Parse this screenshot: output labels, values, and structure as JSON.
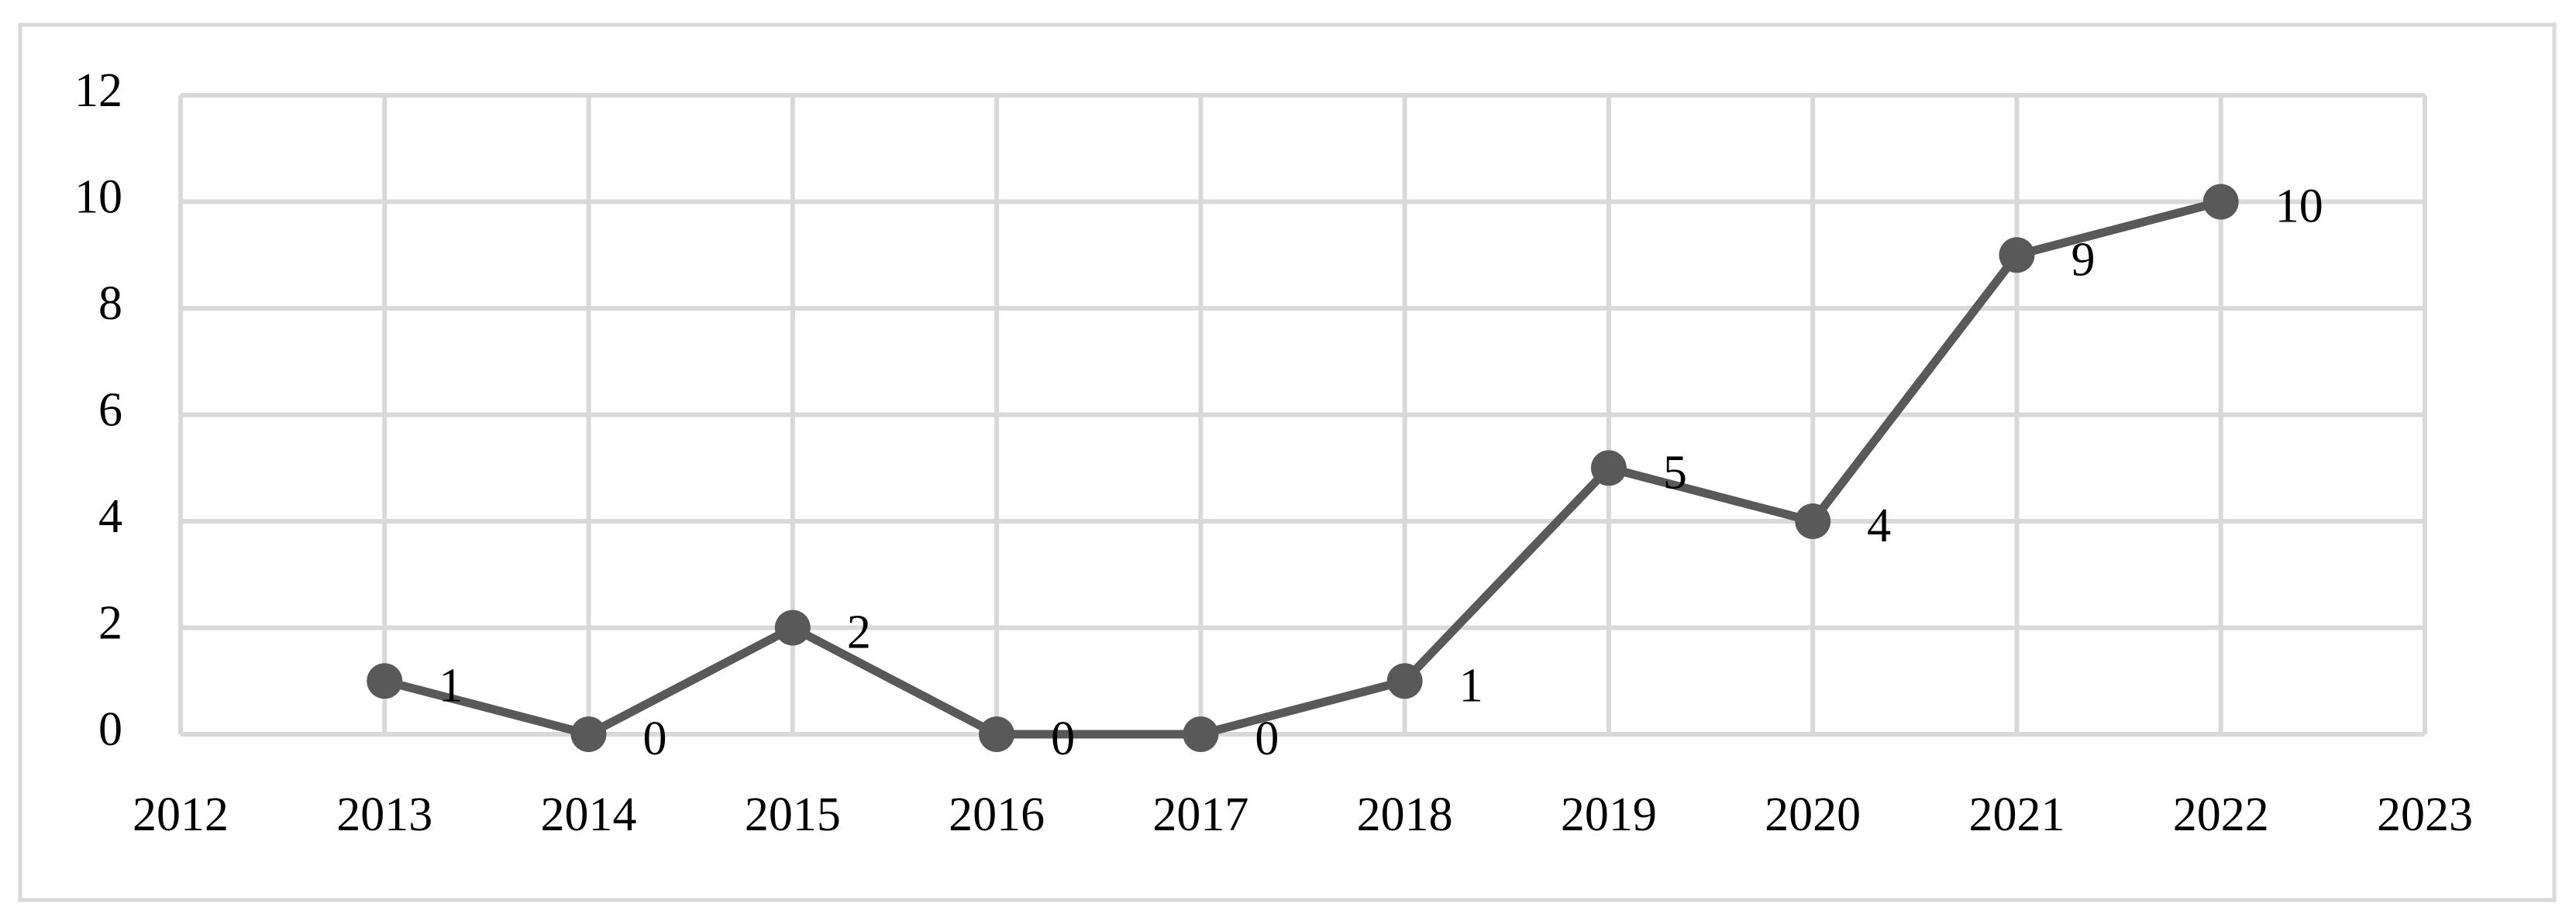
{
  "chart_data": {
    "type": "line",
    "x": [
      2013,
      2014,
      2015,
      2016,
      2017,
      2018,
      2019,
      2020,
      2021,
      2022
    ],
    "values": [
      1,
      0,
      2,
      0,
      0,
      1,
      5,
      4,
      9,
      10
    ],
    "color": "#595959",
    "xlim": [
      2012,
      2023
    ],
    "xticks": [
      2012,
      2013,
      2014,
      2015,
      2016,
      2017,
      2018,
      2019,
      2020,
      2021,
      2022,
      2023
    ],
    "ylim": [
      0,
      12
    ],
    "yticks": [
      0,
      2,
      4,
      6,
      8,
      10,
      12
    ],
    "grid": true,
    "data_labels": true
  }
}
